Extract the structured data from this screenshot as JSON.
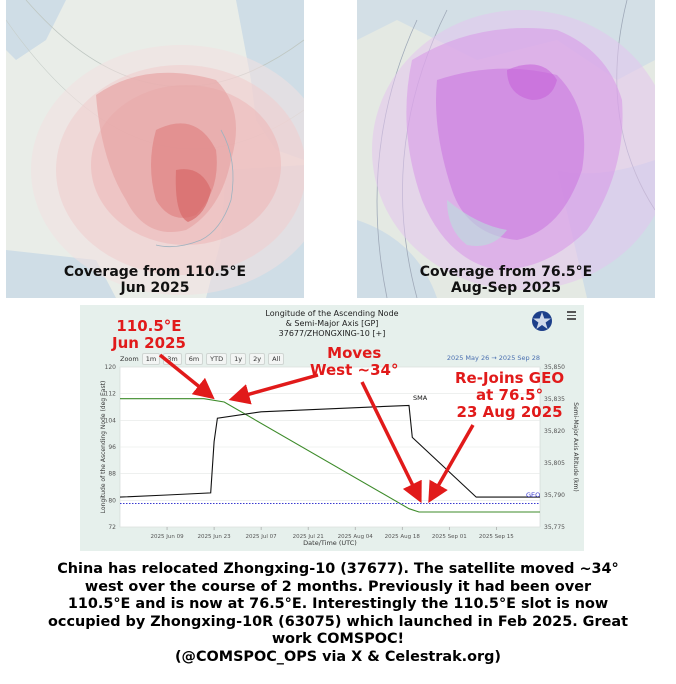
{
  "maps": {
    "left": {
      "caption_line1": "Coverage from 110.5°E",
      "caption_line2": "Jun 2025"
    },
    "right": {
      "caption_line1": "Coverage from 76.5°E",
      "caption_line2": "Aug-Sep 2025"
    }
  },
  "chart": {
    "title_line1": "Longitude of the Ascending Node",
    "title_line2": "& Semi-Major Axis [GP]",
    "title_line3": "37677/ZHONGXING-10 [+]",
    "zoom_label": "Zoom",
    "zoom_buttons": [
      "1m",
      "3m",
      "6m",
      "YTD",
      "1y",
      "2y",
      "All"
    ],
    "date_range": "2025 May 26  →  2025 Sep 28",
    "sma_label": "SMA",
    "geo_label": "GEO",
    "xlabel": "Date/Time (UTC)",
    "ylabel_left": "Longitude of the Ascending Node (deg East)",
    "ylabel_right": "Semi-Major Axis Altitude (km)",
    "colors": {
      "longitude": "#3d8b2a",
      "sma": "#111111",
      "geo": "#3a3ad0"
    }
  },
  "chart_data": {
    "type": "line",
    "x_ticks": [
      "2025 Jun 09",
      "2025 Jun 23",
      "2025 Jul 07",
      "2025 Jul 21",
      "2025 Aug 04",
      "2025 Aug 18",
      "2025 Sep 01",
      "2025 Sep 15"
    ],
    "y_ticks_left": [
      72,
      80,
      88,
      96,
      104,
      112,
      120
    ],
    "y_ticks_right": [
      "35,775",
      "35,790",
      "35,805",
      "35,820",
      "35,835",
      "35,850"
    ],
    "ylim_left": [
      72,
      120
    ],
    "ylim_right": [
      35775,
      35850
    ],
    "series": [
      {
        "name": "Longitude",
        "axis": "left",
        "x": [
          "2025 May 26",
          "2025 Jun 20",
          "2025 Jun 26",
          "2025 Aug 20",
          "2025 Aug 23",
          "2025 Sep 28"
        ],
        "values": [
          110.5,
          110.5,
          109.5,
          77.5,
          76.5,
          76.5
        ]
      },
      {
        "name": "SMA",
        "axis": "right",
        "x": [
          "2025 May 26",
          "2025 Jun 09",
          "2025 Jun 22",
          "2025 Jun 23",
          "2025 Jun 24",
          "2025 Jul 07",
          "2025 Aug 20",
          "2025 Aug 21",
          "2025 Sep 09",
          "2025 Sep 28"
        ],
        "values": [
          35789,
          35790,
          35791,
          35815,
          35826,
          35829,
          35832,
          35817,
          35789,
          35789
        ]
      },
      {
        "name": "GEO",
        "axis": "right",
        "x": [
          "2025 May 26",
          "2025 Sep 28"
        ],
        "values": [
          35786,
          35786
        ]
      }
    ]
  },
  "annotations": {
    "start": {
      "line1": "110.5°E",
      "line2": "Jun 2025"
    },
    "moves": {
      "line1": "Moves",
      "line2": "West ~34°"
    },
    "rejoin": {
      "line1": "Re-Joins GEO",
      "line2": "at 76.5°",
      "line3": "23 Aug 2025"
    }
  },
  "caption": {
    "line1": "China has relocated Zhongxing-10 (37677).  The satellite moved ~34°",
    "line2": "west over the course of 2 months.   Previously it had been over",
    "line3": "110.5°E and is now at 76.5°E. Interestingly the 110.5°E slot is now",
    "line4": "occupied by Zhongxing-10R (63075) which launched in Feb 2025.  Great",
    "line5": "work COMSPOC!",
    "line6": "(@COMSPOC_OPS via X & Celestrak.org)"
  }
}
